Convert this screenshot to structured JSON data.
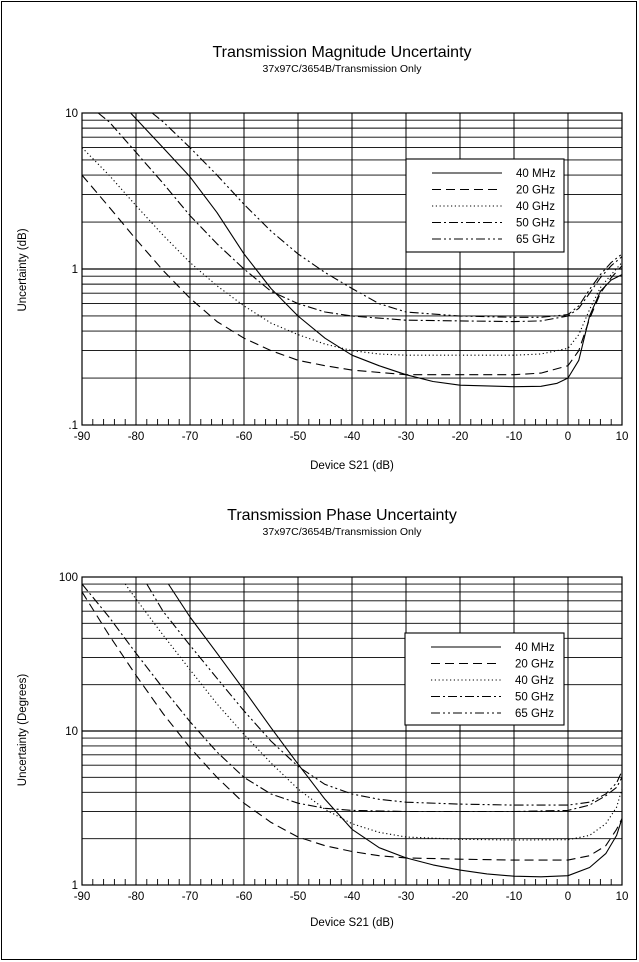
{
  "chart_data": [
    {
      "type": "line",
      "title": "Transmission Magnitude Uncertainty",
      "subtitle": "37x97C/3654B/Transmission Only",
      "xlabel": "Device S21 (dB)",
      "ylabel": "Uncertainty (dB)",
      "xlim": [
        -90,
        10
      ],
      "ylim": [
        0.1,
        10
      ],
      "yscale": "log",
      "x_ticks": [
        -90,
        -80,
        -70,
        -60,
        -50,
        -40,
        -30,
        -20,
        -10,
        0,
        10
      ],
      "x_tick_labels": [
        "-90",
        "-80",
        "-70",
        "-60",
        "-50",
        "-40",
        "-30",
        "-20",
        "-10",
        "0",
        "10"
      ],
      "y_ticks": [
        0.1,
        1,
        10
      ],
      "y_tick_labels": [
        ".1",
        "1",
        "10"
      ],
      "grid": true,
      "legend_position": "upper-right",
      "series": [
        {
          "name": "40 MHz",
          "style": "solid",
          "points": [
            [
              -81,
              10
            ],
            [
              -75,
              6
            ],
            [
              -70,
              3.9
            ],
            [
              -65,
              2.3
            ],
            [
              -60,
              1.25
            ],
            [
              -55,
              0.75
            ],
            [
              -50,
              0.5
            ],
            [
              -45,
              0.36
            ],
            [
              -40,
              0.28
            ],
            [
              -35,
              0.24
            ],
            [
              -30,
              0.21
            ],
            [
              -25,
              0.19
            ],
            [
              -20,
              0.18
            ],
            [
              -15,
              0.178
            ],
            [
              -10,
              0.176
            ],
            [
              -5,
              0.177
            ],
            [
              -2,
              0.185
            ],
            [
              0,
              0.2
            ],
            [
              2,
              0.26
            ],
            [
              4,
              0.5
            ],
            [
              6,
              0.72
            ],
            [
              8,
              0.85
            ],
            [
              10,
              0.92
            ]
          ]
        },
        {
          "name": "20 GHz",
          "style": "dashed",
          "points": [
            [
              -90,
              4
            ],
            [
              -85,
              2.5
            ],
            [
              -80,
              1.55
            ],
            [
              -75,
              0.98
            ],
            [
              -70,
              0.65
            ],
            [
              -65,
              0.46
            ],
            [
              -60,
              0.36
            ],
            [
              -55,
              0.3
            ],
            [
              -50,
              0.26
            ],
            [
              -45,
              0.24
            ],
            [
              -40,
              0.225
            ],
            [
              -30,
              0.21
            ],
            [
              -20,
              0.21
            ],
            [
              -10,
              0.21
            ],
            [
              -5,
              0.215
            ],
            [
              0,
              0.24
            ],
            [
              2,
              0.3
            ],
            [
              4,
              0.48
            ],
            [
              6,
              0.7
            ],
            [
              8,
              0.88
            ],
            [
              10,
              1.05
            ]
          ]
        },
        {
          "name": "40 GHz",
          "style": "dotted",
          "points": [
            [
              -90,
              6
            ],
            [
              -85,
              4
            ],
            [
              -80,
              2.55
            ],
            [
              -75,
              1.65
            ],
            [
              -70,
              1.1
            ],
            [
              -65,
              0.78
            ],
            [
              -60,
              0.58
            ],
            [
              -55,
              0.45
            ],
            [
              -50,
              0.38
            ],
            [
              -45,
              0.33
            ],
            [
              -40,
              0.3
            ],
            [
              -35,
              0.285
            ],
            [
              -30,
              0.28
            ],
            [
              -20,
              0.28
            ],
            [
              -10,
              0.28
            ],
            [
              -5,
              0.285
            ],
            [
              0,
              0.31
            ],
            [
              2,
              0.38
            ],
            [
              4,
              0.55
            ],
            [
              6,
              0.76
            ],
            [
              8,
              0.92
            ],
            [
              10,
              1.1
            ]
          ]
        },
        {
          "name": "50 GHz",
          "style": "dashdot",
          "points": [
            [
              -87,
              10
            ],
            [
              -85,
              8.8
            ],
            [
              -80,
              5.6
            ],
            [
              -75,
              3.55
            ],
            [
              -70,
              2.2
            ],
            [
              -65,
              1.45
            ],
            [
              -60,
              1.0
            ],
            [
              -55,
              0.72
            ],
            [
              -50,
              0.6
            ],
            [
              -45,
              0.53
            ],
            [
              -40,
              0.5
            ],
            [
              -30,
              0.47
            ],
            [
              -20,
              0.465
            ],
            [
              -10,
              0.46
            ],
            [
              -5,
              0.465
            ],
            [
              0,
              0.5
            ],
            [
              2,
              0.56
            ],
            [
              4,
              0.7
            ],
            [
              6,
              0.88
            ],
            [
              8,
              1.05
            ],
            [
              10,
              1.2
            ]
          ]
        },
        {
          "name": "65 GHz",
          "style": "dashdotdot",
          "points": [
            [
              -77,
              10
            ],
            [
              -75,
              8.8
            ],
            [
              -70,
              6
            ],
            [
              -65,
              4
            ],
            [
              -60,
              2.6
            ],
            [
              -55,
              1.75
            ],
            [
              -50,
              1.25
            ],
            [
              -45,
              0.95
            ],
            [
              -40,
              0.75
            ],
            [
              -35,
              0.6
            ],
            [
              -30,
              0.53
            ],
            [
              -20,
              0.5
            ],
            [
              -10,
              0.49
            ],
            [
              -5,
              0.49
            ],
            [
              0,
              0.51
            ],
            [
              2,
              0.58
            ],
            [
              4,
              0.74
            ],
            [
              6,
              0.92
            ],
            [
              8,
              1.1
            ],
            [
              10,
              1.25
            ]
          ]
        }
      ]
    },
    {
      "type": "line",
      "title": "Transmission Phase Uncertainty",
      "subtitle": "37x97C/3654B/Transmission Only",
      "xlabel": "Device S21 (dB)",
      "ylabel": "Uncertainty (Degrees)",
      "xlim": [
        -90,
        10
      ],
      "ylim": [
        1,
        100
      ],
      "yscale": "log",
      "x_ticks": [
        -90,
        -80,
        -70,
        -60,
        -50,
        -40,
        -30,
        -20,
        -10,
        0,
        10
      ],
      "x_tick_labels": [
        "-90",
        "-80",
        "-70",
        "-60",
        "-50",
        "-40",
        "-30",
        "-20",
        "-10",
        "0",
        "10"
      ],
      "y_ticks": [
        1,
        10,
        100
      ],
      "y_tick_labels": [
        "1",
        "10",
        "100"
      ],
      "grid": true,
      "legend_position": "right",
      "series": [
        {
          "name": "40 MHz",
          "style": "solid",
          "points": [
            [
              -74,
              90
            ],
            [
              -70,
              55
            ],
            [
              -65,
              32
            ],
            [
              -60,
              18.5
            ],
            [
              -55,
              10.5
            ],
            [
              -50,
              6.1
            ],
            [
              -45,
              3.6
            ],
            [
              -40,
              2.3
            ],
            [
              -35,
              1.75
            ],
            [
              -30,
              1.5
            ],
            [
              -25,
              1.35
            ],
            [
              -20,
              1.25
            ],
            [
              -15,
              1.18
            ],
            [
              -10,
              1.14
            ],
            [
              -5,
              1.13
            ],
            [
              0,
              1.15
            ],
            [
              4,
              1.3
            ],
            [
              7,
              1.6
            ],
            [
              9,
              2.1
            ],
            [
              10,
              2.7
            ]
          ]
        },
        {
          "name": "20 GHz",
          "style": "dashed",
          "points": [
            [
              -90,
              80
            ],
            [
              -85,
              42
            ],
            [
              -80,
              23
            ],
            [
              -75,
              13
            ],
            [
              -70,
              7.8
            ],
            [
              -65,
              5
            ],
            [
              -60,
              3.4
            ],
            [
              -55,
              2.55
            ],
            [
              -50,
              2.05
            ],
            [
              -45,
              1.8
            ],
            [
              -40,
              1.65
            ],
            [
              -35,
              1.55
            ],
            [
              -30,
              1.5
            ],
            [
              -20,
              1.47
            ],
            [
              -10,
              1.45
            ],
            [
              0,
              1.45
            ],
            [
              4,
              1.55
            ],
            [
              7,
              1.8
            ],
            [
              9,
              2.3
            ],
            [
              10,
              2.7
            ]
          ]
        },
        {
          "name": "40 GHz",
          "style": "dotted",
          "points": [
            [
              -82,
              90
            ],
            [
              -80,
              72
            ],
            [
              -75,
              42
            ],
            [
              -70,
              25
            ],
            [
              -65,
              15
            ],
            [
              -60,
              9.5
            ],
            [
              -55,
              6.2
            ],
            [
              -50,
              4.2
            ],
            [
              -45,
              3.1
            ],
            [
              -40,
              2.5
            ],
            [
              -35,
              2.2
            ],
            [
              -30,
              2.05
            ],
            [
              -20,
              1.98
            ],
            [
              -10,
              1.96
            ],
            [
              0,
              1.97
            ],
            [
              4,
              2.1
            ],
            [
              7,
              2.5
            ],
            [
              9,
              3.2
            ],
            [
              10,
              4.2
            ]
          ]
        },
        {
          "name": "50 GHz",
          "style": "dashdot",
          "points": [
            [
              -90,
              90
            ],
            [
              -85,
              55
            ],
            [
              -80,
              32
            ],
            [
              -75,
              19
            ],
            [
              -70,
              11.5
            ],
            [
              -65,
              7.3
            ],
            [
              -60,
              5
            ],
            [
              -55,
              3.9
            ],
            [
              -50,
              3.4
            ],
            [
              -45,
              3.15
            ],
            [
              -40,
              3.05
            ],
            [
              -30,
              3.0
            ],
            [
              -20,
              3.0
            ],
            [
              -10,
              3.0
            ],
            [
              0,
              3.05
            ],
            [
              4,
              3.3
            ],
            [
              7,
              3.8
            ],
            [
              9,
              4.3
            ],
            [
              10,
              5.0
            ]
          ]
        },
        {
          "name": "65 GHz",
          "style": "dashdotdot",
          "points": [
            [
              -78,
              90
            ],
            [
              -75,
              60
            ],
            [
              -70,
              36
            ],
            [
              -65,
              22
            ],
            [
              -60,
              13.5
            ],
            [
              -55,
              8.6
            ],
            [
              -50,
              5.9
            ],
            [
              -45,
              4.5
            ],
            [
              -40,
              3.9
            ],
            [
              -35,
              3.6
            ],
            [
              -30,
              3.45
            ],
            [
              -20,
              3.35
            ],
            [
              -10,
              3.3
            ],
            [
              0,
              3.3
            ],
            [
              4,
              3.45
            ],
            [
              7,
              3.9
            ],
            [
              9,
              4.6
            ],
            [
              10,
              5.5
            ]
          ]
        }
      ]
    }
  ]
}
